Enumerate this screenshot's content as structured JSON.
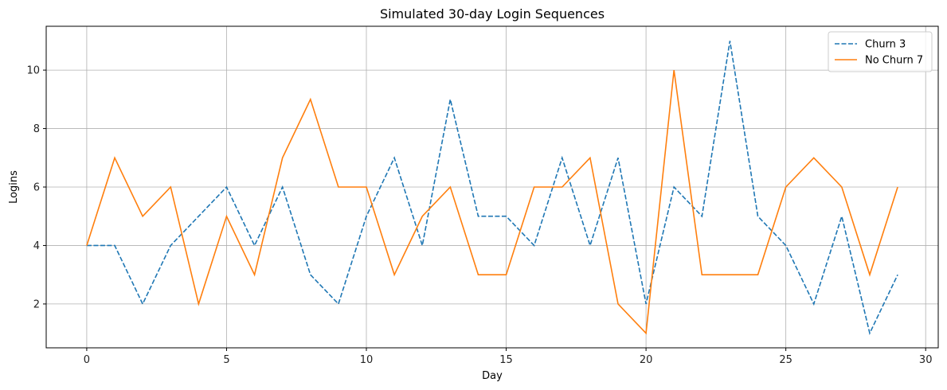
{
  "chart_data": {
    "type": "line",
    "title": "Simulated 30-day Login Sequences",
    "xlabel": "Day",
    "ylabel": "Logins",
    "xlim": [
      -1.45,
      30.45
    ],
    "ylim": [
      0.5,
      11.5
    ],
    "xticks": [
      0,
      5,
      10,
      15,
      20,
      25,
      30
    ],
    "yticks": [
      2,
      4,
      6,
      8,
      10
    ],
    "grid": true,
    "legend_position": "top-right",
    "x": [
      0,
      1,
      2,
      3,
      4,
      5,
      6,
      7,
      8,
      9,
      10,
      11,
      12,
      13,
      14,
      15,
      16,
      17,
      18,
      19,
      20,
      21,
      22,
      23,
      24,
      25,
      26,
      27,
      28,
      29
    ],
    "series": [
      {
        "name": "Churn 3",
        "color": "#1f77b4",
        "style": "dashed",
        "values": [
          4,
          4,
          2,
          4,
          5,
          6,
          4,
          6,
          3,
          2,
          5,
          7,
          4,
          9,
          5,
          5,
          4,
          7,
          4,
          7,
          2,
          6,
          5,
          11,
          5,
          4,
          2,
          5,
          1,
          3
        ]
      },
      {
        "name": "No Churn 7",
        "color": "#ff7f0e",
        "style": "solid",
        "values": [
          4,
          7,
          5,
          6,
          2,
          5,
          3,
          7,
          9,
          6,
          6,
          3,
          5,
          6,
          3,
          3,
          6,
          6,
          7,
          2,
          1,
          10,
          3,
          3,
          3,
          6,
          7,
          6,
          3,
          6
        ]
      }
    ]
  }
}
